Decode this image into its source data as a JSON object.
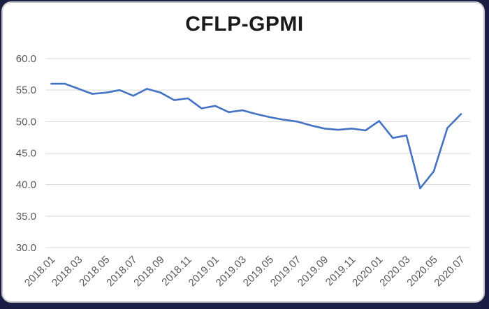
{
  "page": {
    "frame_color": "#1b1e44",
    "card_background": "#ffffff",
    "card_border_color": "#c6c6c6"
  },
  "chart_data": {
    "type": "line",
    "title": "CFLP-GPMI",
    "series_name": "CFLP-GPMI",
    "categories": [
      "2018.01",
      "2018.02",
      "2018.03",
      "2018.04",
      "2018.05",
      "2018.06",
      "2018.07",
      "2018.08",
      "2018.09",
      "2018.10",
      "2018.11",
      "2018.12",
      "2019.01",
      "2019.02",
      "2019.03",
      "2019.04",
      "2019.05",
      "2019.06",
      "2019.07",
      "2019.08",
      "2019.09",
      "2019.10",
      "2019.11",
      "2019.12",
      "2020.01",
      "2020.02",
      "2020.03",
      "2020.04",
      "2020.05",
      "2020.06",
      "2020.07"
    ],
    "values": [
      56.0,
      56.0,
      55.2,
      54.4,
      54.6,
      55.0,
      54.1,
      55.2,
      54.6,
      53.4,
      53.7,
      52.1,
      52.5,
      51.5,
      51.8,
      51.2,
      50.7,
      50.3,
      50.0,
      49.4,
      48.9,
      48.7,
      48.9,
      48.6,
      50.1,
      47.4,
      47.8,
      39.4,
      42.1,
      49.0,
      51.2
    ],
    "xlabel": "",
    "ylabel": "",
    "ylim": [
      30.0,
      60.0
    ],
    "y_tick_labels": [
      "60.0",
      "55.0",
      "50.0",
      "45.0",
      "40.0",
      "35.0",
      "30.0"
    ],
    "x_tick_labels": [
      "2018.01",
      "2018.03",
      "2018.05",
      "2018.07",
      "2018.09",
      "2018.11",
      "2019.01",
      "2019.03",
      "2019.05",
      "2019.07",
      "2019.09",
      "2019.11",
      "2020.01",
      "2020.03",
      "2020.05",
      "2020.07"
    ],
    "x_tick_step": 2,
    "x_tick_rotation_deg": -45,
    "grid": true,
    "legend_position": "none",
    "line_color": "#4472C4",
    "gridline_color": "#D9D9D9",
    "axis_label_color": "#595959",
    "title_color": "#1a1a1a"
  }
}
